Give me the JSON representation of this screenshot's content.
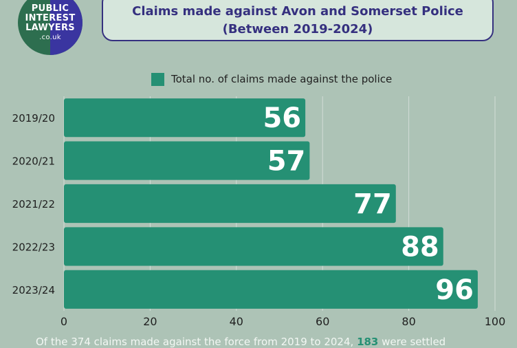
{
  "logo": {
    "line1": "PUBLIC",
    "line2": "INTEREST",
    "line3": "LAWYERS",
    "line4": ".co.uk"
  },
  "colors": {
    "bar": "#259074",
    "title": "#35307f",
    "background": "#adc3b6"
  },
  "footer": {
    "text_before": "Of the 374 claims made against the force from 2019 to 2024, ",
    "highlight": "183",
    "text_after": " were settled"
  },
  "chart_data": {
    "type": "bar",
    "orientation": "horizontal",
    "title_line1": "Claims made against Avon and Somerset Police",
    "title_line2": "(Between 2019-2024)",
    "categories": [
      "2019/20",
      "2020/21",
      "2021/22",
      "2022/23",
      "2023/24"
    ],
    "series": [
      {
        "name": "Total no. of claims made against the police",
        "values": [
          56,
          57,
          77,
          88,
          96
        ]
      }
    ],
    "xlim": [
      0,
      100
    ],
    "xticks": [
      0,
      20,
      40,
      60,
      80,
      100
    ],
    "grid": true,
    "legend": "top"
  }
}
